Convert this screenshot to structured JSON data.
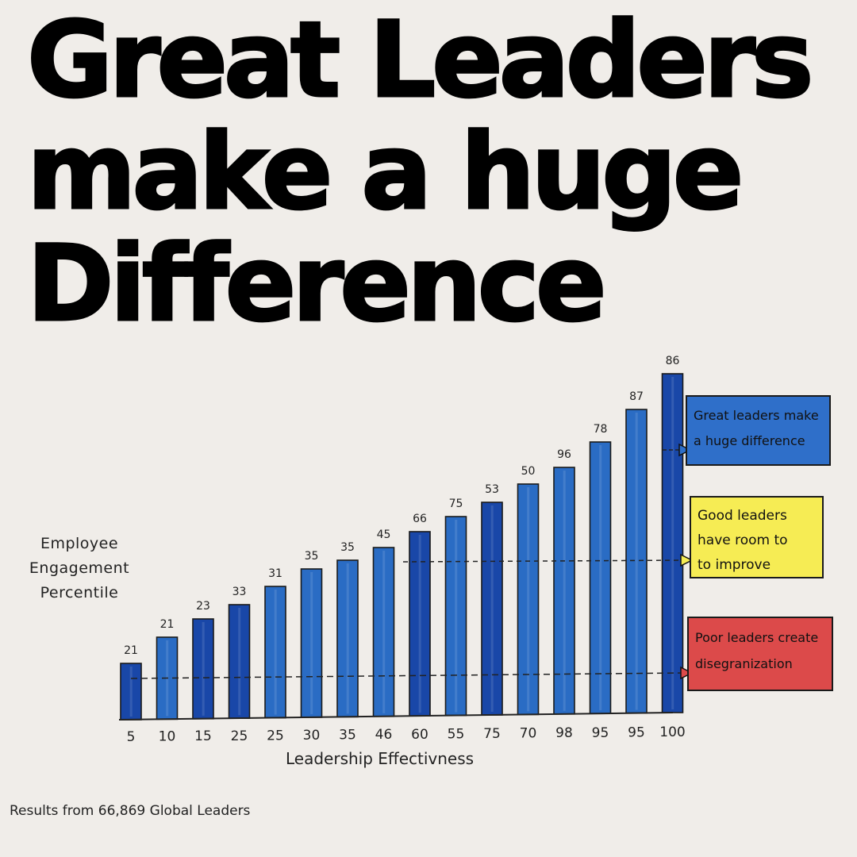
{
  "headline": {
    "lines": [
      "Great Leaders",
      "make a huge",
      "Difference"
    ]
  },
  "colors": {
    "background": "#f0ede9",
    "bar_light": "#2a6cc4",
    "bar_dark": "#1947a8",
    "callout_great": "#2f6fc9",
    "callout_good": "#f6ec54",
    "callout_poor": "#dc4a4a"
  },
  "chart": {
    "y_axis_label": [
      "Employee",
      "Engagement",
      "Percentile"
    ],
    "x_axis_label": "Leadership Effectivness",
    "footnote": "Results from 66,869 Global Leaders",
    "callouts": [
      {
        "id": "great",
        "lines": [
          "Great leaders make",
          "a huge difference"
        ]
      },
      {
        "id": "good",
        "lines": [
          "Good leaders",
          "have room to",
          "to improve"
        ]
      },
      {
        "id": "poor",
        "lines": [
          "Poor leaders create",
          "disegranization"
        ]
      }
    ]
  },
  "chart_data": {
    "type": "bar",
    "title": "Great Leaders make a huge Difference",
    "xlabel": "Leadership Effectivness",
    "ylabel": "Employee Engagement Percentile",
    "categories": [
      "5",
      "10",
      "15",
      "25",
      "25",
      "30",
      "35",
      "46",
      "60",
      "55",
      "75",
      "70",
      "98",
      "95",
      "95",
      "100"
    ],
    "values": [
      21,
      21,
      23,
      33,
      31,
      35,
      35,
      45,
      66,
      75,
      53,
      50,
      96,
      78,
      87,
      86
    ],
    "bar_shade": [
      "dark",
      "light",
      "dark",
      "dark",
      "light",
      "light",
      "light",
      "light",
      "dark",
      "light",
      "dark",
      "light",
      "light",
      "light",
      "light",
      "dark"
    ],
    "grid": false,
    "reference_lines": [
      {
        "label": "Poor leaders create disegranization",
        "style": "dashed",
        "level": "low"
      },
      {
        "label": "Good leaders have room to to improve",
        "style": "dashed",
        "level": "mid"
      },
      {
        "label": "Great leaders make a huge difference",
        "style": "dashed",
        "level": "high"
      }
    ],
    "annotations": [
      "Great leaders make a huge difference",
      "Good leaders have room to to improve",
      "Poor leaders create disegranization"
    ],
    "footnote": "Results from 66,869 Global Leaders"
  }
}
